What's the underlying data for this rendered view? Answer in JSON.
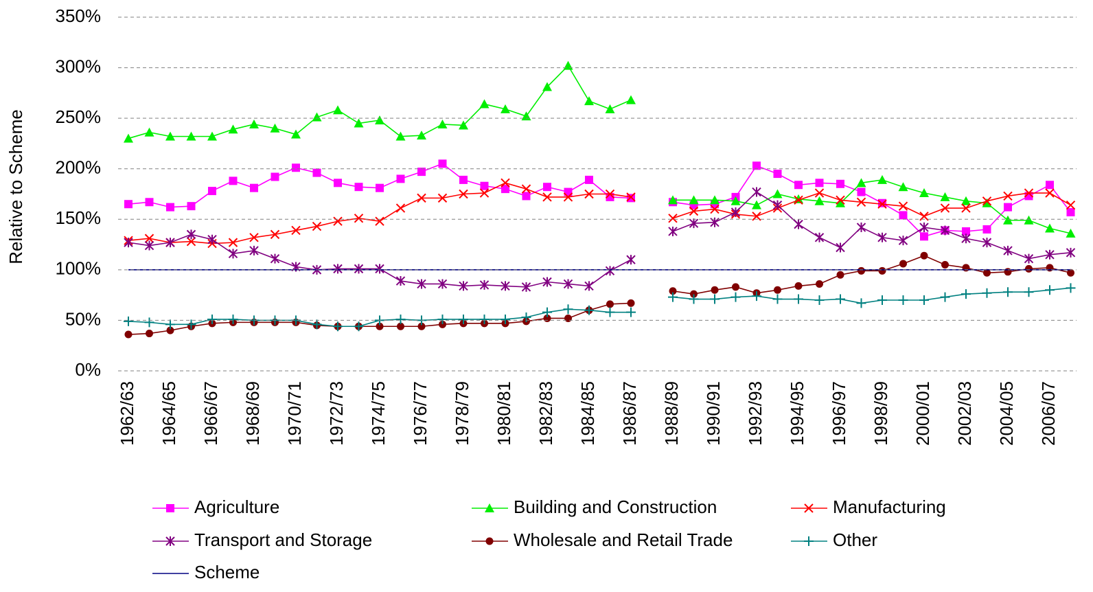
{
  "chart_data": {
    "type": "line",
    "y_label": "Relative to Scheme",
    "categories": [
      "1962/63",
      null,
      "1964/65",
      null,
      "1966/67",
      null,
      "1968/69",
      null,
      "1970/71",
      null,
      "1972/73",
      null,
      "1974/75",
      null,
      "1976/77",
      null,
      "1978/79",
      null,
      "1980/81",
      null,
      "1982/83",
      null,
      "1984/85",
      null,
      "1986/87",
      null,
      "1988/89",
      null,
      "1990/91",
      null,
      "1992/93",
      null,
      "1994/95",
      null,
      "1996/97",
      null,
      "1998/99",
      null,
      "2000/01",
      null,
      "2002/03",
      null,
      "2004/05",
      null,
      "2006/07",
      null
    ],
    "ylim": [
      0,
      350
    ],
    "yticks": [
      {
        "value": 0,
        "label": "0%"
      },
      {
        "value": 50,
        "label": "50%"
      },
      {
        "value": 100,
        "label": "100%"
      },
      {
        "value": 150,
        "label": "150%"
      },
      {
        "value": 200,
        "label": "200%"
      },
      {
        "value": 250,
        "label": "250%"
      },
      {
        "value": 300,
        "label": "300%"
      },
      {
        "value": 350,
        "label": "350%"
      }
    ],
    "grid": true,
    "legend": "bottom",
    "series": [
      {
        "name": "Agriculture",
        "color": "#ff00ff",
        "marker": "square",
        "values": [
          165,
          167,
          162,
          163,
          178,
          188,
          181,
          192,
          201,
          196,
          186,
          182,
          181,
          190,
          197,
          205,
          189,
          183,
          180,
          173,
          182,
          177,
          189,
          172,
          171,
          null,
          167,
          164,
          165,
          172,
          203,
          195,
          184,
          186,
          185,
          177,
          166,
          154,
          133,
          139,
          138,
          140,
          162,
          173,
          184,
          157
        ]
      },
      {
        "name": "Building and Construction",
        "color": "#00ee00",
        "marker": "triangle",
        "values": [
          230,
          236,
          232,
          232,
          232,
          239,
          244,
          240,
          234,
          251,
          258,
          245,
          248,
          232,
          233,
          244,
          243,
          264,
          259,
          252,
          281,
          302,
          267,
          259,
          268,
          null,
          169,
          169,
          169,
          168,
          164,
          175,
          170,
          168,
          166,
          186,
          189,
          182,
          176,
          172,
          168,
          166,
          149,
          149,
          141,
          136
        ]
      },
      {
        "name": "Manufacturing",
        "color": "#ff0000",
        "marker": "x",
        "values": [
          129,
          131,
          127,
          128,
          126,
          127,
          132,
          135,
          139,
          143,
          148,
          151,
          148,
          161,
          171,
          171,
          175,
          176,
          186,
          180,
          172,
          172,
          175,
          175,
          172,
          null,
          151,
          158,
          160,
          155,
          153,
          161,
          169,
          176,
          169,
          167,
          165,
          163,
          153,
          161,
          161,
          168,
          173,
          176,
          176,
          164
        ]
      },
      {
        "name": "Transport and Storage",
        "color": "#800080",
        "marker": "star",
        "values": [
          127,
          124,
          127,
          135,
          130,
          116,
          119,
          111,
          103,
          100,
          101,
          101,
          101,
          89,
          86,
          86,
          84,
          85,
          84,
          83,
          88,
          86,
          84,
          99,
          110,
          null,
          138,
          146,
          147,
          157,
          177,
          164,
          145,
          132,
          122,
          142,
          132,
          129,
          142,
          139,
          131,
          127,
          119,
          111,
          115,
          117
        ]
      },
      {
        "name": "Wholesale and Retail Trade",
        "color": "#800000",
        "marker": "circle",
        "values": [
          36,
          37,
          40,
          44,
          47,
          48,
          48,
          48,
          48,
          45,
          44,
          44,
          44,
          44,
          44,
          46,
          47,
          47,
          47,
          49,
          52,
          52,
          60,
          66,
          67,
          null,
          79,
          76,
          80,
          83,
          77,
          80,
          84,
          86,
          95,
          99,
          99,
          106,
          114,
          105,
          102,
          97,
          98,
          101,
          102,
          97
        ]
      },
      {
        "name": "Other",
        "color": "#008080",
        "marker": "plus",
        "values": [
          49,
          48,
          46,
          46,
          51,
          51,
          50,
          50,
          50,
          46,
          44,
          44,
          50,
          51,
          50,
          51,
          51,
          51,
          51,
          53,
          58,
          61,
          60,
          58,
          58,
          null,
          73,
          71,
          71,
          73,
          74,
          71,
          71,
          70,
          71,
          67,
          70,
          70,
          70,
          73,
          76,
          77,
          78,
          78,
          80,
          82
        ]
      },
      {
        "name": "Scheme",
        "color": "#000080",
        "marker": "none",
        "values": [
          100,
          100,
          100,
          100,
          100,
          100,
          100,
          100,
          100,
          100,
          100,
          100,
          100,
          100,
          100,
          100,
          100,
          100,
          100,
          100,
          100,
          100,
          100,
          100,
          100,
          100,
          100,
          100,
          100,
          100,
          100,
          100,
          100,
          100,
          100,
          100,
          100,
          100,
          100,
          100,
          100,
          100,
          100,
          100,
          100,
          100
        ]
      }
    ]
  }
}
